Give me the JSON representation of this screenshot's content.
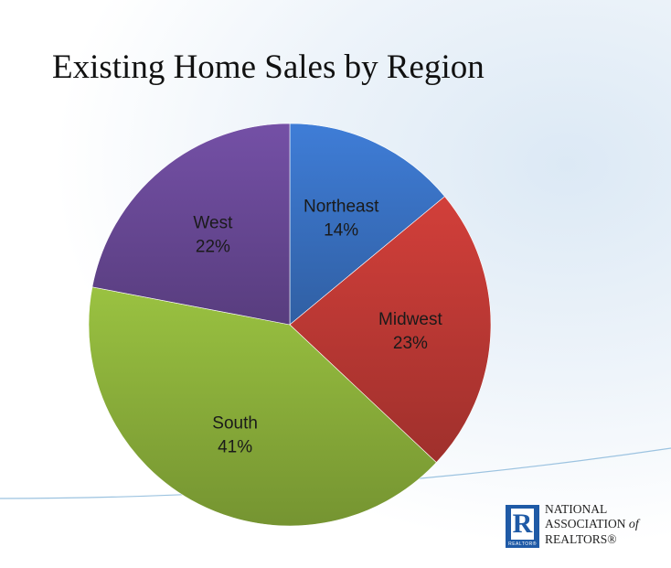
{
  "chart_data": {
    "type": "pie",
    "title": "Existing Home Sales by Region",
    "start_angle_deg": 0,
    "direction": "clockwise",
    "slices": [
      {
        "label": "Northeast",
        "value": 14,
        "display": "14%",
        "color": "#3a74c7"
      },
      {
        "label": "Midwest",
        "value": 23,
        "display": "23%",
        "color": "#c23a36"
      },
      {
        "label": "South",
        "value": 41,
        "display": "41%",
        "color": "#8fb43c"
      },
      {
        "label": "West",
        "value": 22,
        "display": "22%",
        "color": "#6b4a9a"
      }
    ]
  },
  "logo": {
    "mark_letter": "R",
    "mark_caption": "REALTOR®",
    "line1": "NATIONAL",
    "line2": "ASSOCIATION",
    "line2_suffix": "of",
    "line3": "REALTORS®"
  }
}
